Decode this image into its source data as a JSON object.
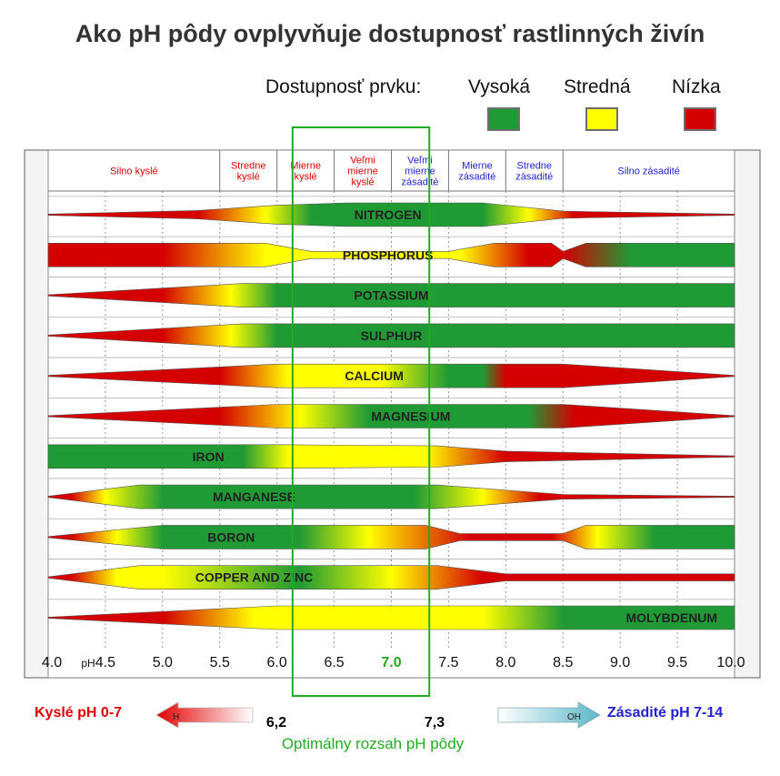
{
  "title": "Ako pH pôdy ovplyvňuje dostupnosť rastlinných živín",
  "legend": {
    "label": "Dostupnosť prvku:",
    "items": [
      {
        "name": "Vysoká",
        "color": "#1f9a35"
      },
      {
        "name": "Stredná",
        "color": "#ffff00"
      },
      {
        "name": "Nízka",
        "color": "#d40000"
      }
    ]
  },
  "colors": {
    "high": "#1f9a35",
    "medium": "#ffff00",
    "low": "#d40000",
    "optimal": "#22aa22",
    "acid": "#e00000",
    "alkaline": "#2222cc"
  },
  "chart_data": {
    "type": "band",
    "x_axis": {
      "range": [
        4.0,
        10.0
      ],
      "ticks": [
        "4.0",
        "pH",
        "4.5",
        "5.0",
        "5.5",
        "6.0",
        "6.5",
        "7.0",
        "7.5",
        "8.0",
        "8.5",
        "9.0",
        "9.5",
        "10.0"
      ],
      "neutral_label": "7.0"
    },
    "zones": [
      {
        "label": "Silno kyslé",
        "from": 4.0,
        "to": 5.5,
        "side": "acid"
      },
      {
        "label": "Stredne kyslé",
        "from": 5.5,
        "to": 6.0,
        "side": "acid"
      },
      {
        "label": "Mierne kyslé",
        "from": 6.0,
        "to": 6.5,
        "side": "acid"
      },
      {
        "label": "Veľmi mierne kyslé",
        "from": 6.5,
        "to": 7.0,
        "side": "acid"
      },
      {
        "label": "Veľmi mierne zásadité",
        "from": 7.0,
        "to": 7.5,
        "side": "alkaline"
      },
      {
        "label": "Mierne zásadité",
        "from": 7.5,
        "to": 8.0,
        "side": "alkaline"
      },
      {
        "label": "Stredne zásadité",
        "from": 8.0,
        "to": 8.5,
        "side": "alkaline"
      },
      {
        "label": "Silno zásadité",
        "from": 8.5,
        "to": 10.0,
        "side": "alkaline"
      }
    ],
    "nutrients": [
      {
        "name": "NITROGEN",
        "label_ph": 6.97,
        "width": [
          [
            4.0,
            0.05
          ],
          [
            5.3,
            0.35
          ],
          [
            6.0,
            0.8
          ],
          [
            6.6,
            1
          ],
          [
            7.8,
            1
          ],
          [
            8.5,
            0.3
          ],
          [
            10.0,
            0.05
          ]
        ],
        "color": [
          [
            4.3,
            "low"
          ],
          [
            5.3,
            "low"
          ],
          [
            5.9,
            "medium"
          ],
          [
            6.3,
            "high"
          ],
          [
            7.8,
            "high"
          ],
          [
            8.2,
            "medium"
          ],
          [
            8.6,
            "low"
          ],
          [
            10.0,
            "low"
          ]
        ]
      },
      {
        "name": "PHOSPHORUS",
        "label_ph": 6.97,
        "width": [
          [
            4.0,
            1
          ],
          [
            5.9,
            1
          ],
          [
            6.3,
            0.3
          ],
          [
            7.5,
            0.3
          ],
          [
            7.9,
            1
          ],
          [
            8.4,
            1
          ],
          [
            8.5,
            0.3
          ],
          [
            8.7,
            1
          ],
          [
            10.0,
            1
          ]
        ],
        "color": [
          [
            4.0,
            "low"
          ],
          [
            5.0,
            "low"
          ],
          [
            5.9,
            "medium"
          ],
          [
            6.7,
            "medium"
          ],
          [
            7.6,
            "medium"
          ],
          [
            8.2,
            "low"
          ],
          [
            8.5,
            "low"
          ],
          [
            9.1,
            "high"
          ],
          [
            10.0,
            "high"
          ]
        ]
      },
      {
        "name": "POTASSIUM",
        "label_ph": 7.0,
        "width": [
          [
            4.0,
            0.05
          ],
          [
            5.7,
            1
          ],
          [
            10.0,
            1
          ]
        ],
        "color": [
          [
            4.3,
            "low"
          ],
          [
            5.0,
            "low"
          ],
          [
            5.6,
            "medium"
          ],
          [
            6.0,
            "high"
          ],
          [
            10.0,
            "high"
          ]
        ]
      },
      {
        "name": "SULPHUR",
        "label_ph": 7.0,
        "width": [
          [
            4.0,
            0.05
          ],
          [
            5.7,
            1
          ],
          [
            10.0,
            1
          ]
        ],
        "color": [
          [
            4.3,
            "low"
          ],
          [
            5.0,
            "low"
          ],
          [
            5.6,
            "medium"
          ],
          [
            6.0,
            "high"
          ],
          [
            10.0,
            "high"
          ]
        ]
      },
      {
        "name": "CALCIUM",
        "label_ph": 6.85,
        "width": [
          [
            4.0,
            0.05
          ],
          [
            6.0,
            1
          ],
          [
            8.5,
            1
          ],
          [
            10.0,
            0.05
          ]
        ],
        "color": [
          [
            4.3,
            "low"
          ],
          [
            5.5,
            "low"
          ],
          [
            6.1,
            "medium"
          ],
          [
            6.9,
            "medium"
          ],
          [
            7.5,
            "high"
          ],
          [
            7.8,
            "high"
          ],
          [
            8.0,
            "low"
          ],
          [
            10.0,
            "low"
          ]
        ]
      },
      {
        "name": "MAGNESIUM",
        "label_ph": 7.17,
        "width": [
          [
            4.0,
            0.05
          ],
          [
            6.0,
            1
          ],
          [
            8.5,
            1
          ],
          [
            10.0,
            0.05
          ]
        ],
        "color": [
          [
            4.3,
            "low"
          ],
          [
            5.5,
            "low"
          ],
          [
            6.2,
            "medium"
          ],
          [
            6.8,
            "high"
          ],
          [
            8.2,
            "high"
          ],
          [
            8.6,
            "low"
          ],
          [
            10.0,
            "low"
          ]
        ]
      },
      {
        "name": "IRON",
        "label_ph": 5.4,
        "width": [
          [
            4.0,
            1
          ],
          [
            6.0,
            1
          ],
          [
            7.4,
            0.9
          ],
          [
            8.0,
            0.45
          ],
          [
            10.0,
            0.05
          ]
        ],
        "color": [
          [
            4.0,
            "high"
          ],
          [
            5.7,
            "high"
          ],
          [
            6.1,
            "medium"
          ],
          [
            7.3,
            "medium"
          ],
          [
            8.0,
            "low"
          ],
          [
            10.0,
            "low"
          ]
        ]
      },
      {
        "name": "MANGANESE",
        "label_ph": 5.8,
        "width": [
          [
            4.0,
            0.05
          ],
          [
            4.8,
            1
          ],
          [
            7.4,
            1
          ],
          [
            8.5,
            0.2
          ],
          [
            10.0,
            0.05
          ]
        ],
        "color": [
          [
            4.2,
            "low"
          ],
          [
            4.5,
            "medium"
          ],
          [
            5.0,
            "high"
          ],
          [
            7.2,
            "high"
          ],
          [
            7.8,
            "medium"
          ],
          [
            8.3,
            "low"
          ],
          [
            10.0,
            "low"
          ]
        ]
      },
      {
        "name": "BORON",
        "label_ph": 5.6,
        "width": [
          [
            4.0,
            0.05
          ],
          [
            5.0,
            1
          ],
          [
            7.3,
            1
          ],
          [
            7.6,
            0.3
          ],
          [
            8.5,
            0.3
          ],
          [
            8.7,
            1
          ],
          [
            10.0,
            1
          ]
        ],
        "color": [
          [
            4.2,
            "low"
          ],
          [
            4.6,
            "medium"
          ],
          [
            5.0,
            "high"
          ],
          [
            6.2,
            "high"
          ],
          [
            6.8,
            "medium"
          ],
          [
            7.7,
            "low"
          ],
          [
            8.4,
            "low"
          ],
          [
            8.8,
            "medium"
          ],
          [
            9.3,
            "high"
          ],
          [
            10.0,
            "high"
          ]
        ]
      },
      {
        "name": "COPPER AND ZINC",
        "label_ph": 5.8,
        "width": [
          [
            4.0,
            0.05
          ],
          [
            4.8,
            1
          ],
          [
            7.4,
            1
          ],
          [
            8.0,
            0.3
          ],
          [
            10.0,
            0.3
          ]
        ],
        "color": [
          [
            4.2,
            "low"
          ],
          [
            4.6,
            "medium"
          ],
          [
            5.0,
            "medium"
          ],
          [
            6.2,
            "high"
          ],
          [
            7.0,
            "medium"
          ],
          [
            7.8,
            "low"
          ],
          [
            10.0,
            "low"
          ]
        ]
      },
      {
        "name": "MOLYBDENUM",
        "label_ph": 9.45,
        "width": [
          [
            4.0,
            0.05
          ],
          [
            6.0,
            1
          ],
          [
            7.5,
            1
          ],
          [
            8.5,
            1
          ],
          [
            10.0,
            1
          ]
        ],
        "color": [
          [
            4.2,
            "low"
          ],
          [
            5.0,
            "low"
          ],
          [
            5.8,
            "medium"
          ],
          [
            7.8,
            "medium"
          ],
          [
            8.5,
            "high"
          ],
          [
            10.0,
            "high"
          ]
        ]
      }
    ],
    "optimal_range": {
      "from": 6.2,
      "to": 7.3,
      "from_label": "6,2",
      "to_label": "7,3",
      "label": "Optimálny rozsah pH pôdy"
    }
  },
  "bottom": {
    "acid_label": "Kyslé pH 0-7",
    "acid_ion": "H",
    "alkaline_label": "Zásadité pH 7-14",
    "alkaline_ion": "OH"
  }
}
